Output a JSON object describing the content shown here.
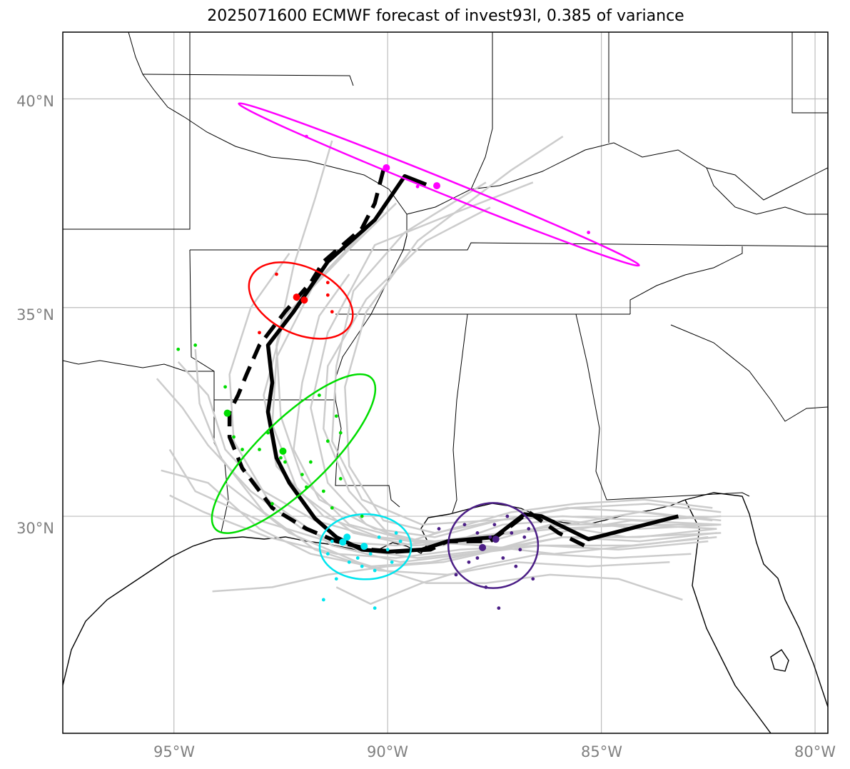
{
  "title": "2025071600 ECMWF forecast of invest93l, 0.385 of variance",
  "lat_ticks": [
    {
      "value": 40,
      "label": "40°N"
    },
    {
      "value": 35,
      "label": "35°N"
    },
    {
      "value": 30,
      "label": "30°N"
    }
  ],
  "lon_ticks": [
    {
      "value": -95,
      "label": "95°W"
    },
    {
      "value": -90,
      "label": "90°W"
    },
    {
      "value": -85,
      "label": "85°W"
    },
    {
      "value": -80,
      "label": "80°W"
    }
  ],
  "extent": {
    "lon_min": -97.6,
    "lon_max": -79.7,
    "lat_min": 24.8,
    "lat_max": 41.6
  },
  "colors": {
    "grid": "#bdbdbd",
    "ensemble": "#cccccc",
    "coast": "#000000",
    "cluster_purple": "#4b1e86",
    "cluster_cyan": "#00e5ee",
    "cluster_green": "#00dd00",
    "cluster_red": "#ff0000",
    "cluster_magenta": "#ff00ff"
  },
  "tracks": {
    "mean_solid": [
      [
        -83.2,
        30.0
      ],
      [
        -85.3,
        29.45
      ],
      [
        -86.4,
        30.0
      ],
      [
        -86.8,
        30.05
      ],
      [
        -87.5,
        29.5
      ],
      [
        -88.6,
        29.4
      ],
      [
        -89.2,
        29.2
      ],
      [
        -90.0,
        29.15
      ],
      [
        -90.6,
        29.2
      ],
      [
        -91.2,
        29.5
      ],
      [
        -91.7,
        29.95
      ],
      [
        -92.3,
        30.8
      ],
      [
        -92.6,
        31.4
      ],
      [
        -92.8,
        32.5
      ],
      [
        -92.7,
        33.2
      ],
      [
        -92.8,
        34.1
      ],
      [
        -92.2,
        34.9
      ],
      [
        -91.4,
        36.1
      ],
      [
        -90.3,
        37.1
      ],
      [
        -89.6,
        38.15
      ],
      [
        -89.1,
        37.95
      ]
    ],
    "mean_dashed": [
      [
        -85.4,
        29.3
      ],
      [
        -86.0,
        29.6
      ],
      [
        -86.7,
        30.1
      ],
      [
        -87.2,
        29.7
      ],
      [
        -87.6,
        29.4
      ],
      [
        -88.6,
        29.4
      ],
      [
        -89.0,
        29.2
      ],
      [
        -89.8,
        29.15
      ],
      [
        -90.4,
        29.2
      ],
      [
        -91.2,
        29.4
      ],
      [
        -91.9,
        29.7
      ],
      [
        -92.7,
        30.2
      ],
      [
        -93.4,
        31.15
      ],
      [
        -93.7,
        31.9
      ],
      [
        -93.7,
        32.5
      ],
      [
        -93.5,
        32.9
      ],
      [
        -93.3,
        33.4
      ],
      [
        -93.0,
        34.1
      ],
      [
        -92.4,
        34.9
      ],
      [
        -91.8,
        35.6
      ],
      [
        -91.5,
        36.1
      ],
      [
        -90.6,
        36.9
      ],
      [
        -90.3,
        37.5
      ],
      [
        -90.1,
        38.3
      ]
    ],
    "ensemble": [
      [
        [
          -82.2,
          29.8
        ],
        [
          -84.1,
          29.7
        ],
        [
          -85.9,
          29.9
        ],
        [
          -87.3,
          29.8
        ],
        [
          -88.7,
          29.3
        ],
        [
          -90.2,
          29.5
        ],
        [
          -91.5,
          30.0
        ],
        [
          -92.6,
          31.2
        ],
        [
          -92.9,
          32.9
        ],
        [
          -92.4,
          34.8
        ],
        [
          -90.8,
          36.5
        ],
        [
          -89.8,
          37.5
        ]
      ],
      [
        [
          -82.2,
          29.6
        ],
        [
          -84.4,
          29.5
        ],
        [
          -86.2,
          29.8
        ],
        [
          -87.6,
          29.4
        ],
        [
          -89.4,
          29.3
        ],
        [
          -90.8,
          29.6
        ],
        [
          -92.1,
          30.6
        ],
        [
          -92.7,
          32.2
        ],
        [
          -92.6,
          33.8
        ],
        [
          -91.7,
          35.6
        ],
        [
          -90.1,
          37.3
        ]
      ],
      [
        [
          -82.5,
          29.4
        ],
        [
          -84.6,
          29.2
        ],
        [
          -86.4,
          29.3
        ],
        [
          -88.1,
          29.1
        ],
        [
          -89.7,
          28.9
        ],
        [
          -91.3,
          29.3
        ],
        [
          -92.8,
          30.4
        ],
        [
          -93.6,
          31.8
        ],
        [
          -93.7,
          33.4
        ],
        [
          -93.2,
          35.0
        ],
        [
          -92.3,
          36.3
        ]
      ],
      [
        [
          -82.2,
          29.9
        ],
        [
          -84.0,
          30.1
        ],
        [
          -85.8,
          30.2
        ],
        [
          -87.4,
          29.9
        ],
        [
          -88.9,
          29.5
        ],
        [
          -90.3,
          29.7
        ],
        [
          -91.6,
          30.4
        ],
        [
          -92.2,
          31.6
        ],
        [
          -92.0,
          33.2
        ],
        [
          -91.6,
          34.8
        ],
        [
          -90.9,
          35.8
        ]
      ],
      [
        [
          -83.4,
          28.9
        ],
        [
          -85.3,
          28.8
        ],
        [
          -87.0,
          28.9
        ],
        [
          -88.6,
          28.6
        ],
        [
          -90.2,
          28.7
        ],
        [
          -91.7,
          29.2
        ],
        [
          -92.9,
          30.1
        ],
        [
          -93.9,
          31.4
        ],
        [
          -94.4,
          32.7
        ],
        [
          -94.5,
          34.0
        ]
      ],
      [
        [
          -82.4,
          30.2
        ],
        [
          -84.0,
          30.4
        ],
        [
          -85.6,
          30.3
        ],
        [
          -87.1,
          30.1
        ],
        [
          -88.5,
          29.7
        ],
        [
          -89.5,
          29.4
        ],
        [
          -90.5,
          29.8
        ],
        [
          -91.4,
          30.8
        ],
        [
          -91.8,
          32.6
        ],
        [
          -91.4,
          34.4
        ],
        [
          -90.3,
          36.5
        ],
        [
          -88.6,
          37.2
        ],
        [
          -86.6,
          38.0
        ]
      ],
      [
        [
          -82.3,
          29.7
        ],
        [
          -84.2,
          29.8
        ],
        [
          -86.1,
          29.7
        ],
        [
          -87.9,
          29.5
        ],
        [
          -89.8,
          29.3
        ],
        [
          -91.4,
          29.4
        ],
        [
          -93.0,
          29.9
        ],
        [
          -94.5,
          30.6
        ],
        [
          -95.1,
          31.6
        ]
      ],
      [
        [
          -82.3,
          29.5
        ],
        [
          -84.3,
          29.3
        ],
        [
          -86.5,
          29.3
        ],
        [
          -88.3,
          29.2
        ],
        [
          -89.8,
          29.0
        ],
        [
          -91.2,
          29.1
        ],
        [
          -92.8,
          29.5
        ],
        [
          -94.3,
          30.1
        ],
        [
          -95.1,
          30.5
        ]
      ],
      [
        [
          -82.2,
          30.0
        ],
        [
          -84.0,
          29.9
        ],
        [
          -85.9,
          30.0
        ],
        [
          -87.6,
          29.9
        ],
        [
          -89.2,
          29.8
        ],
        [
          -90.6,
          30.4
        ],
        [
          -91.3,
          31.8
        ],
        [
          -91.2,
          33.6
        ],
        [
          -90.8,
          35.4
        ],
        [
          -89.6,
          36.8
        ],
        [
          -87.7,
          38.0
        ]
      ],
      [
        [
          -82.3,
          29.6
        ],
        [
          -84.1,
          29.4
        ],
        [
          -85.9,
          29.5
        ],
        [
          -87.6,
          29.2
        ],
        [
          -89.3,
          29.0
        ],
        [
          -90.7,
          29.2
        ],
        [
          -92.0,
          29.7
        ],
        [
          -93.2,
          30.6
        ],
        [
          -94.2,
          31.7
        ],
        [
          -94.8,
          32.6
        ],
        [
          -95.4,
          33.3
        ]
      ],
      [
        [
          -83.1,
          28.0
        ],
        [
          -84.6,
          28.5
        ],
        [
          -86.2,
          28.6
        ],
        [
          -87.7,
          28.4
        ],
        [
          -89.1,
          28.4
        ],
        [
          -90.7,
          28.9
        ],
        [
          -92.3,
          29.6
        ],
        [
          -93.8,
          30.8
        ]
      ],
      [
        [
          -82.4,
          29.9
        ],
        [
          -84.1,
          30.1
        ],
        [
          -85.8,
          29.8
        ],
        [
          -87.2,
          29.6
        ],
        [
          -88.8,
          29.3
        ],
        [
          -90.0,
          29.6
        ],
        [
          -90.9,
          30.6
        ],
        [
          -91.5,
          32.1
        ],
        [
          -91.4,
          33.6
        ],
        [
          -90.5,
          35.2
        ],
        [
          -89.1,
          36.6
        ],
        [
          -87.6,
          37.4
        ]
      ],
      [
        [
          -82.2,
          29.8
        ],
        [
          -84.3,
          29.9
        ],
        [
          -86.1,
          29.6
        ],
        [
          -87.5,
          29.2
        ],
        [
          -89.0,
          28.9
        ],
        [
          -90.4,
          28.8
        ],
        [
          -91.8,
          29.1
        ],
        [
          -93.0,
          29.7
        ],
        [
          -94.2,
          30.8
        ],
        [
          -95.3,
          31.1
        ]
      ],
      [
        [
          -82.9,
          29.1
        ],
        [
          -84.7,
          29.0
        ],
        [
          -86.4,
          29.1
        ],
        [
          -87.9,
          28.8
        ],
        [
          -89.2,
          28.4
        ],
        [
          -90.4,
          27.9
        ],
        [
          -91.2,
          28.3
        ]
      ],
      [
        [
          -82.2,
          30.1
        ],
        [
          -83.9,
          30.3
        ],
        [
          -85.7,
          30.2
        ],
        [
          -87.4,
          29.9
        ],
        [
          -88.9,
          29.6
        ],
        [
          -90.1,
          29.9
        ],
        [
          -90.9,
          31.2
        ],
        [
          -91.0,
          33.1
        ],
        [
          -90.5,
          34.9
        ],
        [
          -89.3,
          36.6
        ],
        [
          -87.1,
          38.3
        ],
        [
          -85.9,
          39.1
        ]
      ],
      [
        [
          -82.3,
          29.7
        ],
        [
          -84.1,
          29.5
        ],
        [
          -85.9,
          29.5
        ],
        [
          -87.4,
          29.2
        ],
        [
          -88.7,
          28.9
        ],
        [
          -90.0,
          28.8
        ],
        [
          -91.4,
          28.6
        ],
        [
          -92.7,
          28.3
        ],
        [
          -94.1,
          28.2
        ]
      ],
      [
        [
          -82.5,
          29.5
        ],
        [
          -84.2,
          29.3
        ],
        [
          -86.1,
          29.1
        ],
        [
          -87.8,
          29.3
        ],
        [
          -89.4,
          29.4
        ],
        [
          -90.9,
          29.8
        ],
        [
          -92.0,
          30.9
        ],
        [
          -92.5,
          32.4
        ],
        [
          -92.6,
          34.1
        ],
        [
          -92.2,
          36.0
        ],
        [
          -91.7,
          37.6
        ],
        [
          -91.3,
          39.0
        ]
      ],
      [
        [
          -82.3,
          29.8
        ],
        [
          -84.0,
          29.8
        ],
        [
          -85.8,
          29.8
        ],
        [
          -87.3,
          29.6
        ],
        [
          -88.9,
          29.4
        ],
        [
          -90.3,
          29.5
        ],
        [
          -91.7,
          29.9
        ],
        [
          -92.9,
          30.6
        ],
        [
          -93.8,
          31.6
        ],
        [
          -94.2,
          32.9
        ],
        [
          -94.9,
          33.7
        ]
      ]
    ]
  },
  "clusters": [
    {
      "name": "purple",
      "color_key": "cluster_purple",
      "ellipse": {
        "cx": -87.53,
        "cy": 29.3,
        "rx": 1.05,
        "ry": 1.02,
        "angle": 0
      },
      "centers": [
        [
          -87.47,
          29.45
        ],
        [
          -87.78,
          29.25
        ]
      ],
      "points": [
        [
          -87.1,
          29.6
        ],
        [
          -87.3,
          29.0
        ],
        [
          -87.6,
          29.5
        ],
        [
          -86.9,
          29.2
        ],
        [
          -87.9,
          29.0
        ],
        [
          -88.4,
          28.6
        ],
        [
          -87.7,
          28.3
        ],
        [
          -86.6,
          28.5
        ],
        [
          -87.2,
          30.0
        ],
        [
          -88.2,
          29.8
        ],
        [
          -88.1,
          28.9
        ],
        [
          -87.4,
          27.8
        ],
        [
          -86.8,
          29.5
        ],
        [
          -87.9,
          29.6
        ],
        [
          -86.7,
          29.7
        ],
        [
          -87.5,
          29.8
        ],
        [
          -87.0,
          28.8
        ],
        [
          -88.8,
          29.7
        ]
      ]
    },
    {
      "name": "cyan",
      "color_key": "cluster_cyan",
      "ellipse": {
        "cx": -90.52,
        "cy": 29.27,
        "rx": 1.07,
        "ry": 0.78,
        "angle": 0
      },
      "centers": [
        [
          -90.55,
          29.28
        ],
        [
          -90.95,
          29.5
        ],
        [
          -91.05,
          29.38
        ]
      ],
      "points": [
        [
          -90.2,
          29.5
        ],
        [
          -90.7,
          29.0
        ],
        [
          -90.9,
          28.9
        ],
        [
          -91.2,
          28.5
        ],
        [
          -91.5,
          28.0
        ],
        [
          -90.3,
          28.7
        ],
        [
          -90.0,
          29.2
        ],
        [
          -89.7,
          29.4
        ],
        [
          -90.3,
          27.8
        ],
        [
          -89.9,
          28.9
        ],
        [
          -91.3,
          29.4
        ],
        [
          -90.6,
          28.8
        ],
        [
          -89.8,
          29.6
        ],
        [
          -91.4,
          29.1
        ],
        [
          -90.4,
          29.1
        ]
      ]
    },
    {
      "name": "green",
      "color_key": "cluster_green",
      "ellipse": {
        "cx": -92.2,
        "cy": 31.5,
        "rx": 2.54,
        "ry": 0.83,
        "angle": 44
      },
      "centers": [
        [
          -93.75,
          32.47
        ],
        [
          -92.45,
          31.56
        ]
      ],
      "points": [
        [
          -94.9,
          34.0
        ],
        [
          -94.5,
          34.1
        ],
        [
          -93.8,
          33.1
        ],
        [
          -92.8,
          32.0
        ],
        [
          -92.5,
          31.4
        ],
        [
          -93.0,
          31.6
        ],
        [
          -93.4,
          31.6
        ],
        [
          -92.0,
          31.0
        ],
        [
          -91.9,
          30.7
        ],
        [
          -91.5,
          30.6
        ],
        [
          -91.8,
          31.3
        ],
        [
          -91.4,
          31.8
        ],
        [
          -91.2,
          32.4
        ],
        [
          -93.6,
          31.9
        ],
        [
          -91.1,
          32.0
        ],
        [
          -92.7,
          30.3
        ],
        [
          -91.3,
          30.2
        ],
        [
          -90.6,
          30.0
        ],
        [
          -91.1,
          30.9
        ],
        [
          -92.4,
          31.3
        ],
        [
          -91.6,
          32.9
        ]
      ]
    },
    {
      "name": "red",
      "color_key": "cluster_red",
      "ellipse": {
        "cx": -92.03,
        "cy": 35.17,
        "rx": 1.29,
        "ry": 0.8,
        "angle": -25
      },
      "centers": [
        [
          -92.13,
          35.25
        ],
        [
          -91.95,
          35.18
        ]
      ],
      "points": [
        [
          -92.6,
          35.8
        ],
        [
          -93.0,
          34.4
        ],
        [
          -91.4,
          35.6
        ],
        [
          -91.4,
          35.3
        ],
        [
          -91.3,
          34.9
        ]
      ]
    },
    {
      "name": "magenta",
      "color_key": "cluster_magenta",
      "ellipse": {
        "cx": -88.8,
        "cy": 37.95,
        "rx": 5.05,
        "ry": 0.18,
        "angle": -22
      },
      "centers": [
        [
          -90.03,
          38.35
        ],
        [
          -88.85,
          37.92
        ]
      ],
      "points": [
        [
          -91.9,
          39.1
        ],
        [
          -89.3,
          37.9
        ],
        [
          -85.3,
          36.8
        ]
      ]
    }
  ]
}
